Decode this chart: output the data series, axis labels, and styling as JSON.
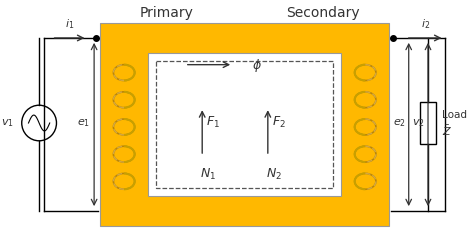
{
  "bg_color": "#ffffff",
  "core_color": "#FFB800",
  "core_edge_color": "#c8a000",
  "text_color": "#333333",
  "title_primary": "Primary",
  "title_secondary": "Secondary",
  "figsize": [
    4.74,
    2.46
  ],
  "dpi": 100
}
